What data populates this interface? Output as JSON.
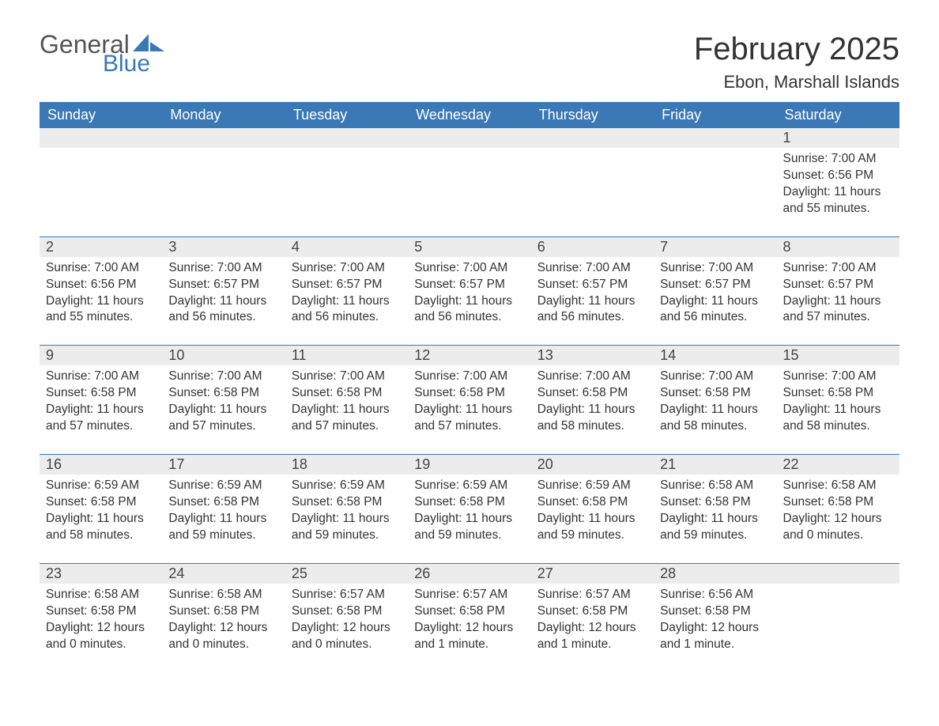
{
  "logo": {
    "text_general": "General",
    "text_blue": "Blue",
    "brand_color": "#3a78b6"
  },
  "title": "February 2025",
  "location": "Ebon, Marshall Islands",
  "colors": {
    "header_bg": "#3a78b6",
    "header_text": "#ffffff",
    "dayhead_bg": "#ececec",
    "body_text": "#333333",
    "rule": "#3a78b6",
    "page_bg": "#ffffff"
  },
  "daynames": [
    "Sunday",
    "Monday",
    "Tuesday",
    "Wednesday",
    "Thursday",
    "Friday",
    "Saturday"
  ],
  "labels": {
    "sunrise": "Sunrise:",
    "sunset": "Sunset:",
    "daylight": "Daylight:"
  },
  "weeks": [
    [
      null,
      null,
      null,
      null,
      null,
      null,
      {
        "n": "1",
        "sr": "7:00 AM",
        "ss": "6:56 PM",
        "dl": "11 hours and 55 minutes."
      }
    ],
    [
      {
        "n": "2",
        "sr": "7:00 AM",
        "ss": "6:56 PM",
        "dl": "11 hours and 55 minutes."
      },
      {
        "n": "3",
        "sr": "7:00 AM",
        "ss": "6:57 PM",
        "dl": "11 hours and 56 minutes."
      },
      {
        "n": "4",
        "sr": "7:00 AM",
        "ss": "6:57 PM",
        "dl": "11 hours and 56 minutes."
      },
      {
        "n": "5",
        "sr": "7:00 AM",
        "ss": "6:57 PM",
        "dl": "11 hours and 56 minutes."
      },
      {
        "n": "6",
        "sr": "7:00 AM",
        "ss": "6:57 PM",
        "dl": "11 hours and 56 minutes."
      },
      {
        "n": "7",
        "sr": "7:00 AM",
        "ss": "6:57 PM",
        "dl": "11 hours and 56 minutes."
      },
      {
        "n": "8",
        "sr": "7:00 AM",
        "ss": "6:57 PM",
        "dl": "11 hours and 57 minutes."
      }
    ],
    [
      {
        "n": "9",
        "sr": "7:00 AM",
        "ss": "6:58 PM",
        "dl": "11 hours and 57 minutes."
      },
      {
        "n": "10",
        "sr": "7:00 AM",
        "ss": "6:58 PM",
        "dl": "11 hours and 57 minutes."
      },
      {
        "n": "11",
        "sr": "7:00 AM",
        "ss": "6:58 PM",
        "dl": "11 hours and 57 minutes."
      },
      {
        "n": "12",
        "sr": "7:00 AM",
        "ss": "6:58 PM",
        "dl": "11 hours and 57 minutes."
      },
      {
        "n": "13",
        "sr": "7:00 AM",
        "ss": "6:58 PM",
        "dl": "11 hours and 58 minutes."
      },
      {
        "n": "14",
        "sr": "7:00 AM",
        "ss": "6:58 PM",
        "dl": "11 hours and 58 minutes."
      },
      {
        "n": "15",
        "sr": "7:00 AM",
        "ss": "6:58 PM",
        "dl": "11 hours and 58 minutes."
      }
    ],
    [
      {
        "n": "16",
        "sr": "6:59 AM",
        "ss": "6:58 PM",
        "dl": "11 hours and 58 minutes."
      },
      {
        "n": "17",
        "sr": "6:59 AM",
        "ss": "6:58 PM",
        "dl": "11 hours and 59 minutes."
      },
      {
        "n": "18",
        "sr": "6:59 AM",
        "ss": "6:58 PM",
        "dl": "11 hours and 59 minutes."
      },
      {
        "n": "19",
        "sr": "6:59 AM",
        "ss": "6:58 PM",
        "dl": "11 hours and 59 minutes."
      },
      {
        "n": "20",
        "sr": "6:59 AM",
        "ss": "6:58 PM",
        "dl": "11 hours and 59 minutes."
      },
      {
        "n": "21",
        "sr": "6:58 AM",
        "ss": "6:58 PM",
        "dl": "11 hours and 59 minutes."
      },
      {
        "n": "22",
        "sr": "6:58 AM",
        "ss": "6:58 PM",
        "dl": "12 hours and 0 minutes."
      }
    ],
    [
      {
        "n": "23",
        "sr": "6:58 AM",
        "ss": "6:58 PM",
        "dl": "12 hours and 0 minutes."
      },
      {
        "n": "24",
        "sr": "6:58 AM",
        "ss": "6:58 PM",
        "dl": "12 hours and 0 minutes."
      },
      {
        "n": "25",
        "sr": "6:57 AM",
        "ss": "6:58 PM",
        "dl": "12 hours and 0 minutes."
      },
      {
        "n": "26",
        "sr": "6:57 AM",
        "ss": "6:58 PM",
        "dl": "12 hours and 1 minute."
      },
      {
        "n": "27",
        "sr": "6:57 AM",
        "ss": "6:58 PM",
        "dl": "12 hours and 1 minute."
      },
      {
        "n": "28",
        "sr": "6:56 AM",
        "ss": "6:58 PM",
        "dl": "12 hours and 1 minute."
      },
      null
    ]
  ]
}
